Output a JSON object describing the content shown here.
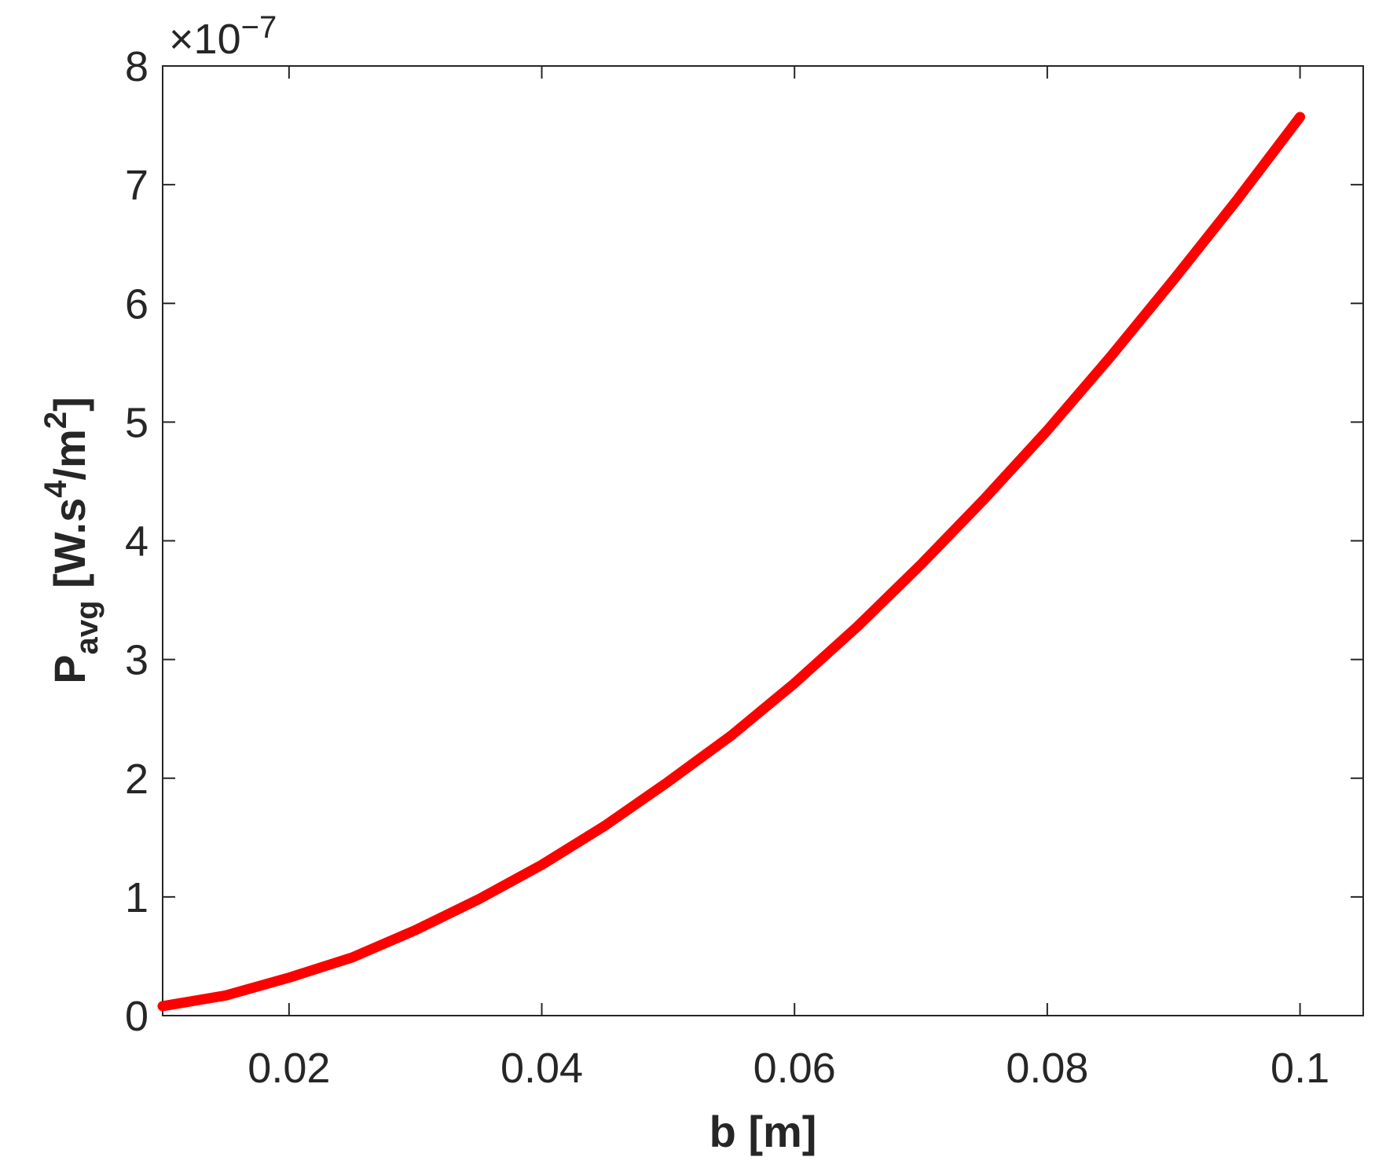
{
  "chart_data": {
    "type": "line",
    "x_label": "b [m]",
    "y_label_parts": [
      "P",
      "avg",
      " [W.s",
      "4",
      "/m",
      "2",
      "]"
    ],
    "y_multiplier": {
      "base": "×10",
      "exponent": "−7"
    },
    "x": [
      0.01,
      0.015,
      0.02,
      0.025,
      0.03,
      0.035,
      0.04,
      0.045,
      0.05,
      0.055,
      0.06,
      0.065,
      0.07,
      0.075,
      0.08,
      0.085,
      0.09,
      0.095,
      0.1
    ],
    "series": [
      {
        "name": "P_avg",
        "color": "#ff0000",
        "values": [
          0.08,
          0.17,
          0.32,
          0.49,
          0.72,
          0.98,
          1.27,
          1.6,
          1.97,
          2.36,
          2.8,
          3.28,
          3.8,
          4.35,
          4.93,
          5.55,
          6.2,
          6.87,
          7.57
        ]
      }
    ],
    "xlim": [
      0.01,
      0.105
    ],
    "ylim": [
      0,
      8
    ],
    "xticks": [
      0.02,
      0.04,
      0.06,
      0.08,
      0.1
    ],
    "yticks": [
      0,
      1,
      2,
      3,
      4,
      5,
      6,
      7,
      8
    ]
  }
}
